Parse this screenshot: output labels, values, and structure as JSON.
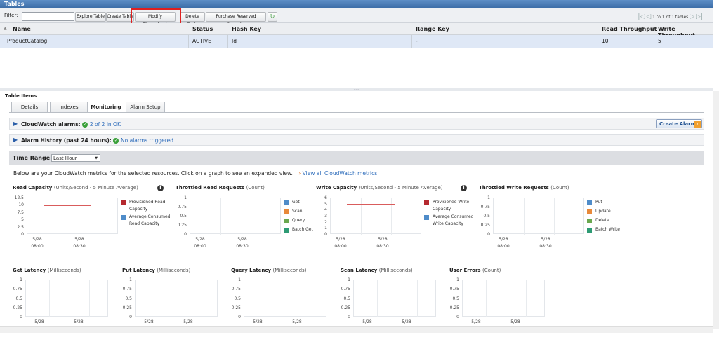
{
  "window": {
    "title": "Tables"
  },
  "toolbar": {
    "filter_label": "Filter:",
    "filter_value": "",
    "buttons": [
      "Explore Table",
      "Create Table",
      "Modify Throughput",
      "Delete Table",
      "Purchase Reserved Capacity"
    ],
    "pager_text": "1 to 1 of 1 tables"
  },
  "table": {
    "columns": [
      "Name",
      "Status",
      "Hash Key",
      "Range Key",
      "Read Throughput",
      "Write Throughput"
    ],
    "rows": [
      {
        "name": "ProductCatalog",
        "status": "ACTIVE",
        "hash_key": "Id",
        "range_key": "-",
        "read": "10",
        "write": "5"
      }
    ]
  },
  "panel": {
    "title": "Table Items",
    "tabs": [
      "Details",
      "Indexes",
      "Monitoring",
      "Alarm Setup"
    ],
    "active_tab": "Monitoring",
    "alarms_label": "CloudWatch alarms:",
    "alarms_status": "2 of 2 in OK",
    "create_alarm": "Create Alarm",
    "history_label": "Alarm History (past 24 hours):",
    "history_status": "No alarms triggered",
    "time_range_label": "Time Range:",
    "time_range_value": "Last Hour",
    "description": "Below are your CloudWatch metrics for the selected resources. Click on a graph to see an expanded view.",
    "view_all_link": "View all CloudWatch metrics"
  },
  "charts": [
    {
      "title": "Read Capacity",
      "unit": "(Units/Second - 5 Minute Average)",
      "info": true,
      "yticks": [
        "12.5",
        "10",
        "7.5",
        "5",
        "2.5",
        "0"
      ],
      "xticks": [
        [
          "5/28",
          "08:00"
        ],
        [
          "5/28",
          "08:30"
        ]
      ],
      "legend": [
        {
          "label": "Provisioned Read Capacity",
          "color": "#b5292f"
        },
        {
          "label": "Average Consumed Read Capacity",
          "color": "#4f8cc9"
        }
      ],
      "line_value": 10,
      "ymax": 12.5
    },
    {
      "title": "Throttled Read Requests",
      "unit": "(Count)",
      "info": false,
      "yticks": [
        "1",
        "0.75",
        "0.5",
        "0.25",
        "0"
      ],
      "xticks": [
        [
          "5/28",
          "08:00"
        ],
        [
          "5/28",
          "08:30"
        ]
      ],
      "legend": [
        {
          "label": "Get",
          "color": "#4f8cc9"
        },
        {
          "label": "Scan",
          "color": "#e8893a"
        },
        {
          "label": "Query",
          "color": "#6aa84f"
        },
        {
          "label": "Batch Get",
          "color": "#2e9b74"
        }
      ]
    },
    {
      "title": "Write Capacity",
      "unit": "(Units/Second - 5 Minute Average)",
      "info": true,
      "yticks": [
        "6",
        "5",
        "4",
        "3",
        "2",
        "1",
        "0"
      ],
      "xticks": [
        [
          "5/28",
          "08:00"
        ],
        [
          "5/28",
          "08:30"
        ]
      ],
      "legend": [
        {
          "label": "Provisioned Write Capacity",
          "color": "#b5292f"
        },
        {
          "label": "Average Consumed Write Capacity",
          "color": "#4f8cc9"
        }
      ],
      "line_value": 5,
      "ymax": 6
    },
    {
      "title": "Throttled Write Requests",
      "unit": "(Count)",
      "info": false,
      "yticks": [
        "1",
        "0.75",
        "0.5",
        "0.25",
        "0"
      ],
      "xticks": [
        [
          "5/28",
          "08:00"
        ],
        [
          "5/28",
          "08:30"
        ]
      ],
      "legend": [
        {
          "label": "Put",
          "color": "#4f8cc9"
        },
        {
          "label": "Update",
          "color": "#e8893a"
        },
        {
          "label": "Delete",
          "color": "#6aa84f"
        },
        {
          "label": "Batch Write",
          "color": "#2e9b74"
        }
      ]
    }
  ],
  "small_charts": [
    {
      "title": "Get Latency",
      "unit": "(Milliseconds)"
    },
    {
      "title": "Put Latency",
      "unit": "(Milliseconds)"
    },
    {
      "title": "Query Latency",
      "unit": "(Milliseconds)"
    },
    {
      "title": "Scan Latency",
      "unit": "(Milliseconds)"
    },
    {
      "title": "User Errors",
      "unit": "(Count)"
    }
  ],
  "small_yticks": [
    "1",
    "0.75",
    "0.5",
    "0.25",
    "0"
  ],
  "small_xtick": "5/28"
}
